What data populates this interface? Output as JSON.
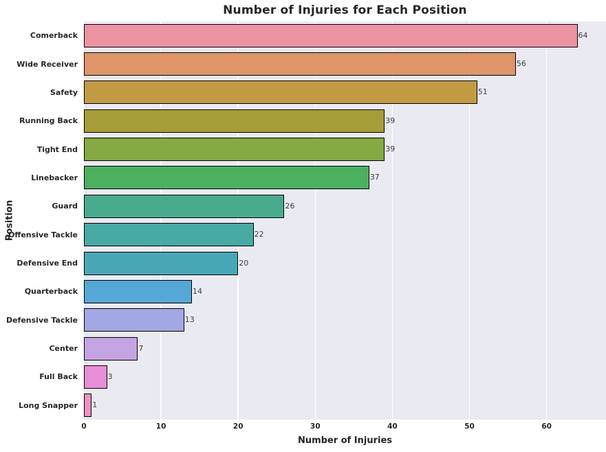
{
  "chart_data": {
    "type": "bar",
    "orientation": "horizontal",
    "title": "Number of Injuries for Each Position",
    "xlabel": "Number of Injuries",
    "ylabel": "Position",
    "categories": [
      "Comerback",
      "Wide Receiver",
      "Safety",
      "Running Back",
      "Tight End",
      "Linebacker",
      "Guard",
      "Offensive Tackle",
      "Defensive End",
      "Quarterback",
      "Defensive Tackle",
      "Center",
      "Full Back",
      "Long Snapper"
    ],
    "values": [
      64,
      56,
      51,
      39,
      39,
      37,
      26,
      22,
      20,
      14,
      13,
      7,
      3,
      1
    ],
    "bar_colors": [
      "#ec93a2",
      "#e09469",
      "#c29a42",
      "#a69d39",
      "#86a943",
      "#4cb05e",
      "#49ab8d",
      "#47aaa3",
      "#49a8b8",
      "#55a8d6",
      "#a3a7e4",
      "#c4a3e2",
      "#e88dd8",
      "#ec93c1"
    ],
    "x_ticks": [
      0,
      10,
      20,
      30,
      40,
      50,
      60
    ],
    "xlim": [
      0,
      67.7
    ],
    "grid": "vertical-white-gridlines",
    "legend": "none",
    "plot_bg_color": "#eaeaf2",
    "bar_edge_color": "#000000",
    "value_labels_shown": true
  }
}
